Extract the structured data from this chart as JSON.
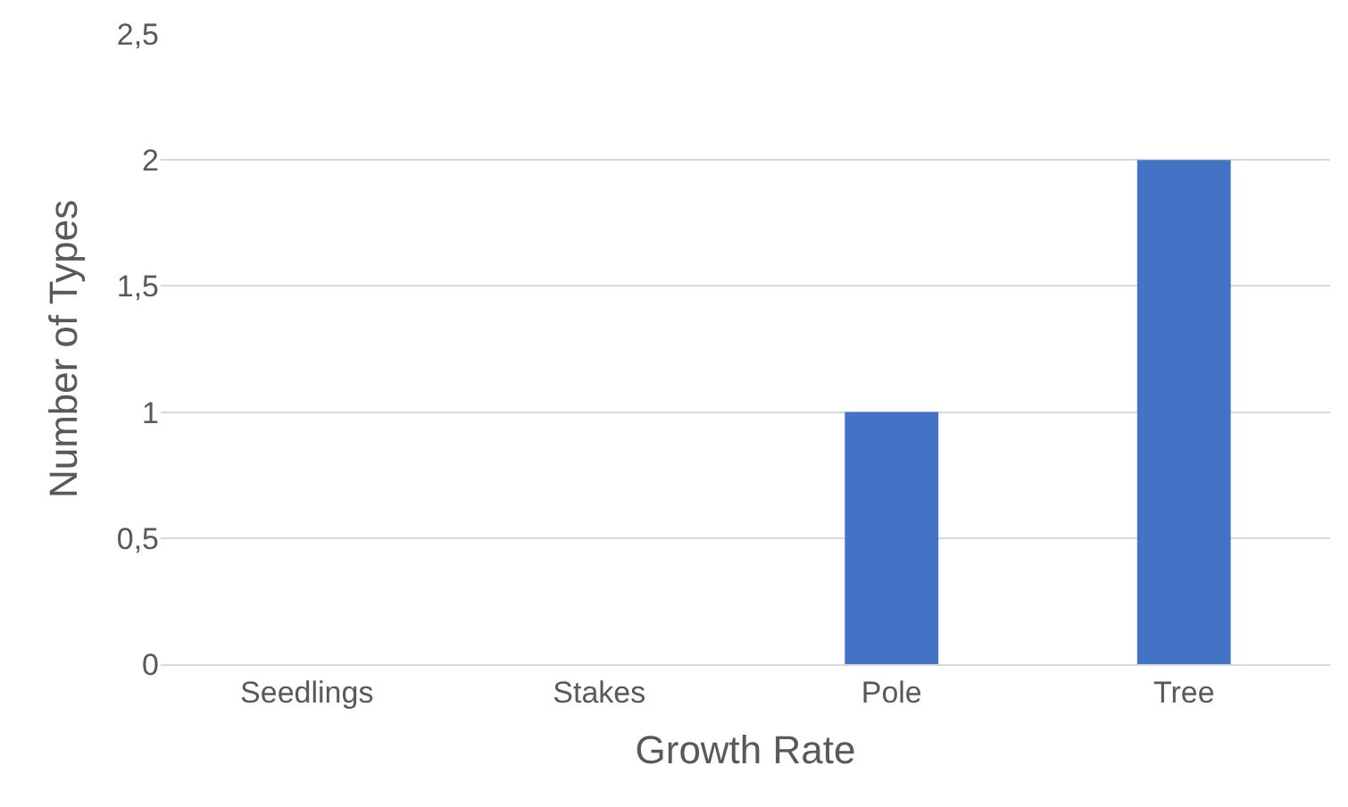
{
  "chart_data": {
    "type": "bar",
    "xlabel": "Growth Rate",
    "ylabel": "Number of Types",
    "categories": [
      "Seedlings",
      "Stakes",
      "Pole",
      "Tree"
    ],
    "values": [
      0,
      0,
      1,
      2
    ],
    "color": "#4472c4",
    "ylim": [
      0,
      2.5
    ],
    "yticks": [
      0,
      {
        "value": 0.5,
        "label": "0,5"
      },
      1,
      {
        "value": 1.5,
        "label": "1,5"
      },
      2,
      {
        "value": 2.5,
        "label": "2,5"
      }
    ],
    "grid": "y"
  }
}
